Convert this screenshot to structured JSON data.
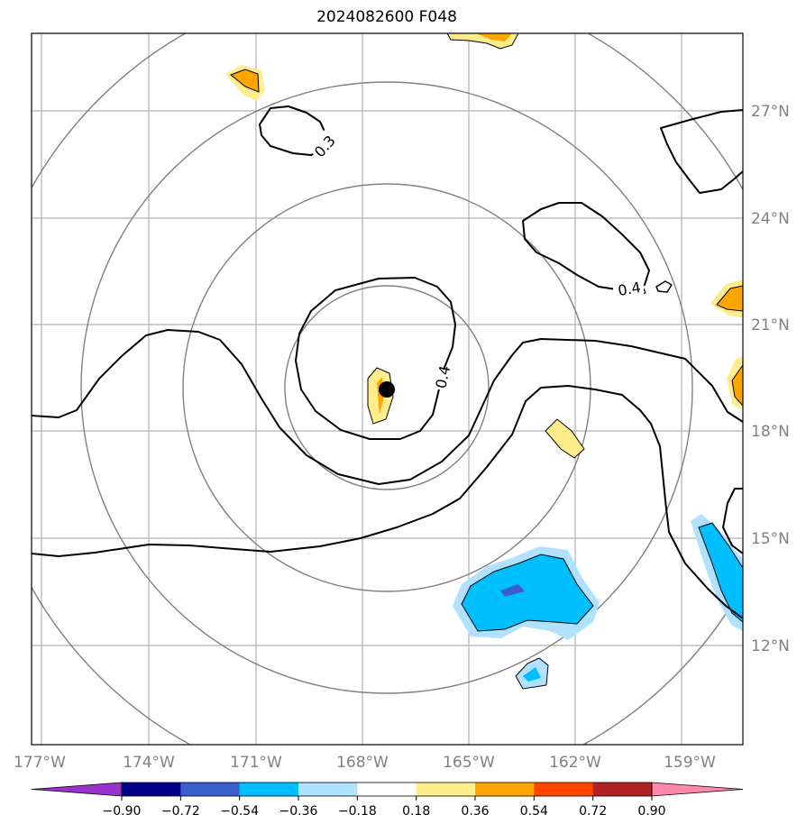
{
  "title": "2024082600 F048",
  "map": {
    "lon_ticks": [
      "177°W",
      "174°W",
      "171°W",
      "168°W",
      "165°W",
      "162°W",
      "159°W"
    ],
    "lat_ticks": [
      "27°N",
      "24°N",
      "21°N",
      "18°N",
      "15°N",
      "12°N"
    ],
    "contour_labels": [
      "0.3",
      "0.4",
      "0.4"
    ],
    "storm_center": {
      "lon": -167.3,
      "lat": 19.2
    }
  },
  "colorbar": {
    "ticks": [
      "−0.90",
      "−0.72",
      "−0.54",
      "−0.36",
      "−0.18",
      "0.18",
      "0.36",
      "0.54",
      "0.72",
      "0.90"
    ],
    "colors": [
      "#9932cc",
      "#00008b",
      "#3a5fcd",
      "#00bfff",
      "#b0e2ff",
      "#ffffff",
      "#ffec8b",
      "#ffa500",
      "#ff4500",
      "#b22222",
      "#ff88aa"
    ]
  }
}
